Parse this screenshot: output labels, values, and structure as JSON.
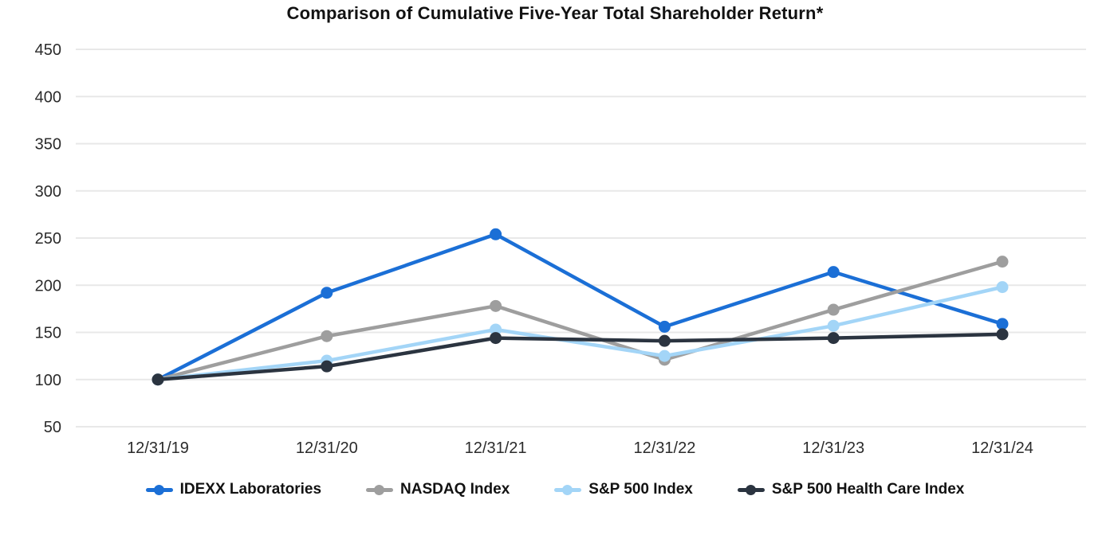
{
  "page": {
    "title": "Comparison of Cumulative Five-Year Total Shareholder Return*"
  },
  "chart_data": {
    "type": "line",
    "title": "Comparison of Cumulative Five-Year Total Shareholder Return*",
    "categories": [
      "12/31/19",
      "12/31/20",
      "12/31/21",
      "12/31/22",
      "12/31/23",
      "12/31/24"
    ],
    "series": [
      {
        "name": "IDEXX Laboratories",
        "color": "#1b6fd6",
        "values": [
          100,
          192,
          254,
          156,
          214,
          159
        ]
      },
      {
        "name": "NASDAQ Index",
        "color": "#9e9e9e",
        "values": [
          100,
          146,
          178,
          121,
          174,
          225
        ]
      },
      {
        "name": "S&P 500 Index",
        "color": "#a3d5f7",
        "values": [
          100,
          120,
          153,
          125,
          157,
          198
        ]
      },
      {
        "name": "S&P 500 Health Care Index",
        "color": "#2b3440",
        "values": [
          100,
          114,
          144,
          141,
          144,
          148
        ]
      }
    ],
    "ylim": [
      50,
      450
    ],
    "yticks": [
      50,
      100,
      150,
      200,
      250,
      300,
      350,
      400,
      450
    ],
    "grid": true,
    "legend_position": "bottom",
    "marker": "circle"
  },
  "colors": {
    "gridline": "#e8e8e8",
    "tick_text": "#2b2b2b",
    "title_text": "#121212",
    "legend_text": "#121212",
    "background": "#ffffff"
  }
}
